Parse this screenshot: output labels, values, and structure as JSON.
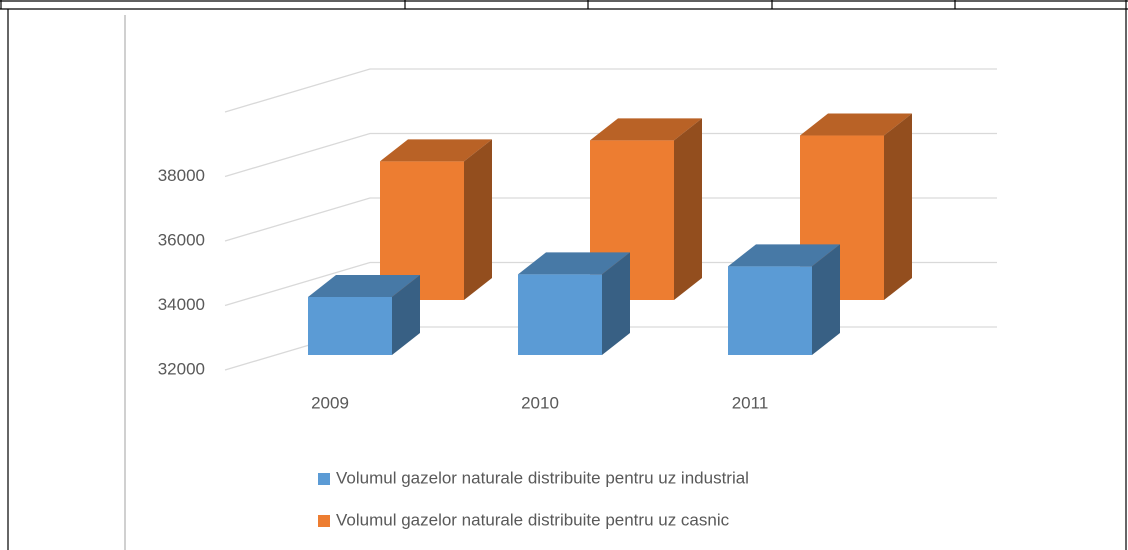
{
  "chart_data": {
    "type": "bar3d",
    "categories": [
      "2009",
      "2010",
      "2011"
    ],
    "series": [
      {
        "name": "Volumul gazelor naturale distribuite pentru uz industrial",
        "color": "#5b9bd5",
        "values": [
          33800,
          34500,
          34750
        ]
      },
      {
        "name": "Volumul gazelor naturale distribuite pentru uz casnic",
        "color": "#ed7d31",
        "values": [
          36300,
          36950,
          37100
        ]
      }
    ],
    "ylim": [
      32000,
      40000
    ],
    "yticks": [
      32000,
      34000,
      36000,
      38000
    ],
    "grid": true,
    "legend": "bottom"
  }
}
